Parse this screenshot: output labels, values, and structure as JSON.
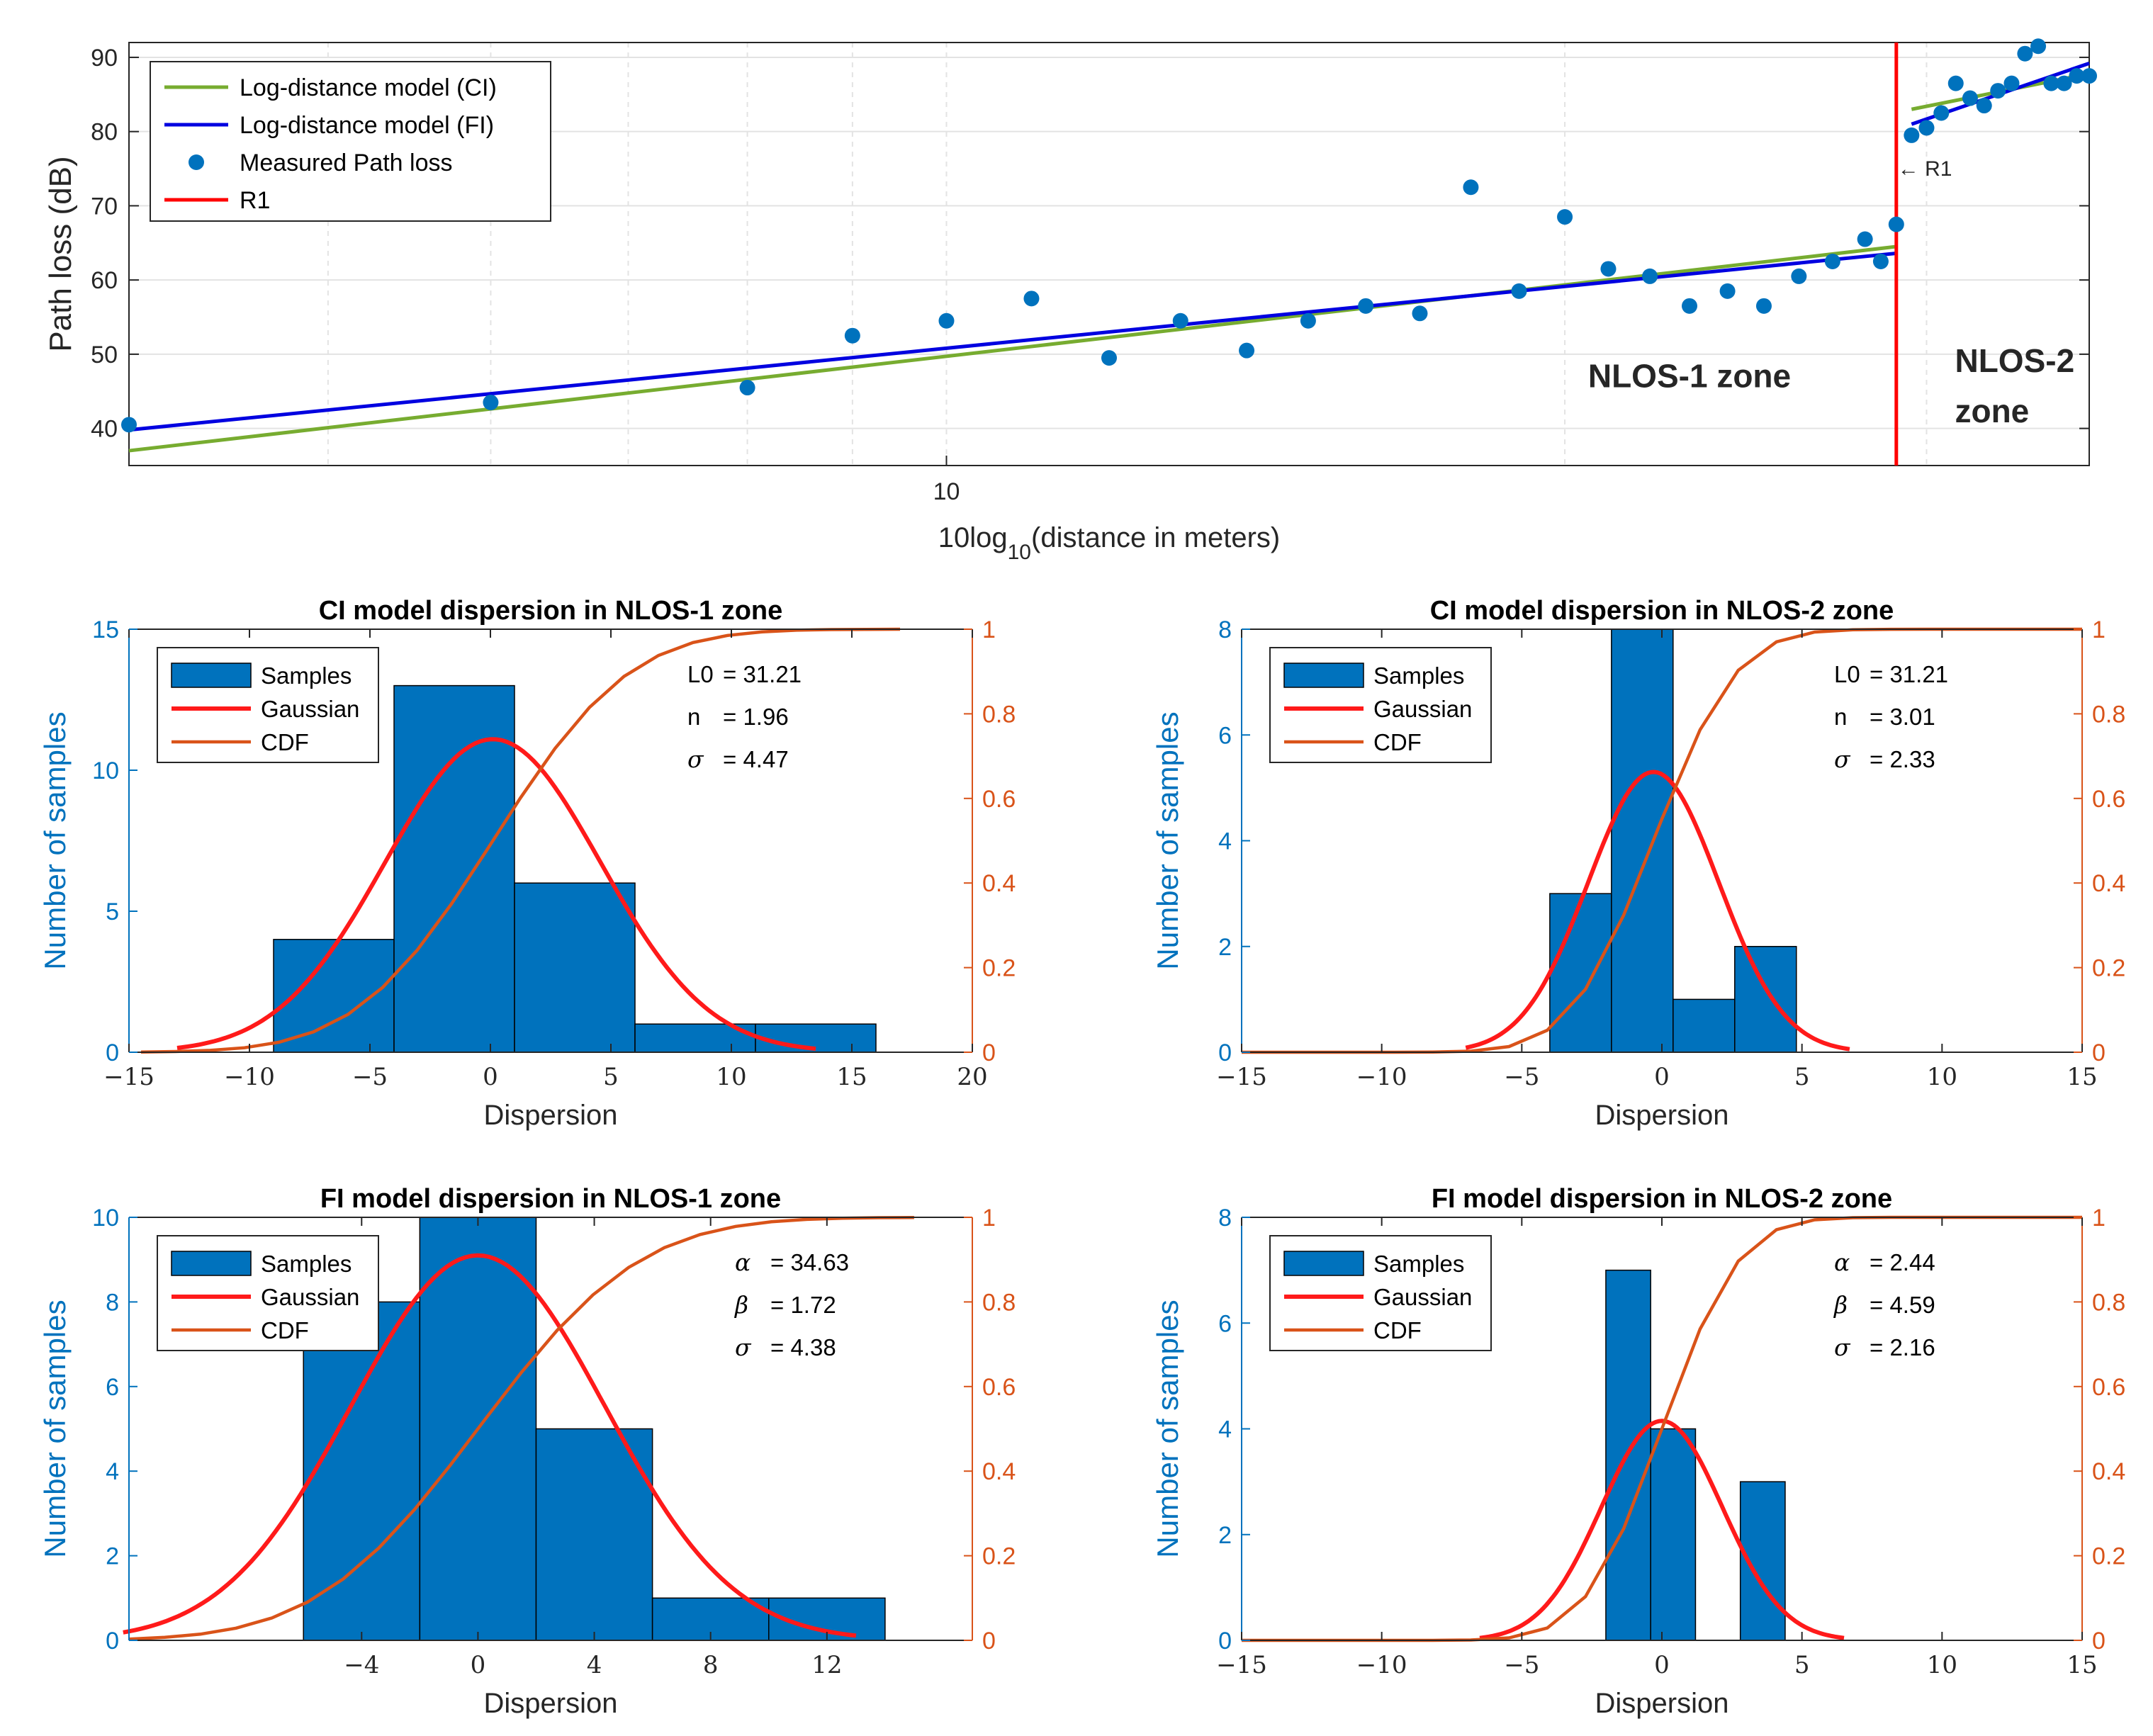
{
  "colors": {
    "axis": "#262626",
    "grid": "#e3e3e3",
    "bar": "#0072bd",
    "measured": "#0072bd",
    "ci_line": "#77ac30",
    "fi_line": "#0000e0",
    "r1_line": "#ff0000",
    "gaussian": "#ff1a1a",
    "cdf": "#d95319",
    "left_axis_label": "#0072bd",
    "right_axis": "#d95319"
  },
  "chart_data": [
    {
      "id": "top",
      "type": "line",
      "title": "",
      "xlabel_prefix": "10log",
      "xlabel_sub": "10",
      "xlabel_suffix": "(distance in meters)",
      "ylabel": "Path loss (dB)",
      "xscale": "log",
      "xlim": [
        4,
        36
      ],
      "ylim": [
        35,
        92
      ],
      "yticks": [
        40,
        50,
        60,
        70,
        80,
        90
      ],
      "xtick_labels": [
        {
          "value": 10,
          "label": "10"
        }
      ],
      "grid": true,
      "legend_position": "top-left",
      "legend": [
        {
          "label": "Log-distance model (CI)",
          "kind": "line",
          "color": "#77ac30"
        },
        {
          "label": "Log-distance model (FI)",
          "kind": "line",
          "color": "#0000e0"
        },
        {
          "label": "Measured Path loss",
          "kind": "marker",
          "color": "#0072bd"
        },
        {
          "label": "R1",
          "kind": "line",
          "color": "#ff0000"
        }
      ],
      "measured": {
        "x": [
          4,
          6,
          8,
          9,
          10,
          11,
          12,
          13,
          14,
          15,
          16,
          17,
          18,
          19,
          20,
          21,
          22,
          23,
          24,
          25,
          26,
          27,
          28,
          28.5,
          29,
          29.5,
          30,
          30.5,
          31,
          31.5,
          32,
          32.5,
          33,
          33.5,
          34,
          34.5,
          35,
          35.5,
          36
        ],
        "y": [
          40.5,
          43.5,
          45.5,
          52.5,
          54.5,
          57.5,
          49.5,
          54.5,
          50.5,
          54.5,
          56.5,
          55.5,
          72.5,
          58.5,
          68.5,
          61.5,
          60.5,
          56.5,
          58.5,
          56.5,
          60.5,
          62.5,
          65.5,
          62.5,
          67.5,
          79.5,
          80.5,
          82.5,
          86.5,
          84.5,
          83.5,
          85.5,
          86.5,
          90.5,
          91.5,
          86.5,
          86.5,
          87.5,
          87.5
        ]
      },
      "ci_nlos1": {
        "x": [
          4,
          29
        ],
        "y": [
          37.0,
          64.5
        ]
      },
      "fi_nlos1": {
        "x": [
          4,
          29
        ],
        "y": [
          39.8,
          63.6
        ]
      },
      "ci_nlos2": {
        "x": [
          29.5,
          36
        ],
        "y": [
          83.0,
          87.8
        ]
      },
      "fi_nlos2": {
        "x": [
          29.5,
          36
        ],
        "y": [
          81.0,
          89.2
        ]
      },
      "r1_x": 29.0,
      "annotations": [
        {
          "text": "← R1",
          "x": 29.0,
          "y": 75
        },
        {
          "text": "NLOS-1 zone",
          "x": 23.0,
          "y": 47
        },
        {
          "text": "NLOS-2 zone",
          "x": 30.0,
          "y": 50
        }
      ]
    },
    {
      "id": "ci1",
      "type": "histogram",
      "title": "CI model dispersion in NLOS-1 zone",
      "xlabel": "Dispersion",
      "ylabel": "Number of samples",
      "xlim": [
        -15,
        20
      ],
      "xticks": [
        -15,
        -10,
        -5,
        0,
        5,
        10,
        15,
        20
      ],
      "ylim": [
        0,
        15
      ],
      "yticks": [
        0,
        5,
        10,
        15
      ],
      "ylim_right": [
        0,
        1
      ],
      "yticks_right": [
        0,
        0.2,
        0.4,
        0.6,
        0.8,
        1
      ],
      "bin_edges": [
        -9,
        -4,
        1,
        6,
        11,
        16
      ],
      "counts": [
        4,
        13,
        6,
        1,
        1
      ],
      "gaussian": {
        "mean": 0.1,
        "sigma": 4.47,
        "amplitude": 11.1,
        "xrange": [
          -13,
          13.5
        ]
      },
      "cdf": {
        "mean": 0.1,
        "sigma": 4.47,
        "xrange": [
          -14.5,
          17
        ]
      },
      "legend": [
        "Samples",
        "Gaussian",
        "CDF"
      ],
      "legend_position": "top-left",
      "params": [
        {
          "symbol": "L0",
          "greek": false,
          "value": "= 31.21"
        },
        {
          "symbol": "n",
          "greek": false,
          "value": "= 1.96"
        },
        {
          "symbol": "σ",
          "greek": true,
          "value": "= 4.47"
        }
      ]
    },
    {
      "id": "ci2",
      "type": "histogram",
      "title": "CI model dispersion in NLOS-2 zone",
      "xlabel": "Dispersion",
      "ylabel": "Number of samples",
      "xlim": [
        -15,
        15
      ],
      "xticks": [
        -15,
        -10,
        -5,
        0,
        5,
        10,
        15
      ],
      "ylim": [
        0,
        8
      ],
      "yticks": [
        0,
        2,
        4,
        6,
        8
      ],
      "ylim_right": [
        0,
        1
      ],
      "yticks_right": [
        0,
        0.2,
        0.4,
        0.6,
        0.8,
        1
      ],
      "bin_edges": [
        -4,
        -1.8,
        0.4,
        2.6,
        4.8
      ],
      "counts": [
        3,
        8,
        1,
        2
      ],
      "gaussian": {
        "mean": -0.3,
        "sigma": 2.33,
        "amplitude": 5.3,
        "xrange": [
          -7,
          6.7
        ]
      },
      "cdf": {
        "mean": -0.3,
        "sigma": 2.33,
        "xrange": [
          -15,
          15
        ]
      },
      "legend": [
        "Samples",
        "Gaussian",
        "CDF"
      ],
      "legend_position": "top-left",
      "params": [
        {
          "symbol": "L0",
          "greek": false,
          "value": "= 31.21"
        },
        {
          "symbol": "n",
          "greek": false,
          "value": "= 3.01"
        },
        {
          "symbol": "σ",
          "greek": true,
          "value": "= 2.33"
        }
      ]
    },
    {
      "id": "fi1",
      "type": "histogram",
      "title": "FI model dispersion in NLOS-1 zone",
      "xlabel": "Dispersion",
      "ylabel": "Number of samples",
      "xlim": [
        -12,
        17
      ],
      "xticks": [
        -4,
        0,
        4,
        8,
        12
      ],
      "ylim": [
        0,
        10
      ],
      "yticks": [
        0,
        2,
        4,
        6,
        8,
        10
      ],
      "ylim_right": [
        0,
        1
      ],
      "yticks_right": [
        0,
        0.2,
        0.4,
        0.6,
        0.8,
        1
      ],
      "bin_edges": [
        -6,
        -2,
        2,
        6,
        10,
        14
      ],
      "counts": [
        8,
        10,
        5,
        1,
        1
      ],
      "gaussian": {
        "mean": 0,
        "sigma": 4.38,
        "amplitude": 9.1,
        "xrange": [
          -12.2,
          13
        ]
      },
      "cdf": {
        "mean": 0,
        "sigma": 4.38,
        "xrange": [
          -12,
          15
        ]
      },
      "legend": [
        "Samples",
        "Gaussian",
        "CDF"
      ],
      "legend_position": "top-left",
      "params": [
        {
          "symbol": "α",
          "greek": true,
          "value": "= 34.63"
        },
        {
          "symbol": "β",
          "greek": true,
          "value": "= 1.72"
        },
        {
          "symbol": "σ",
          "greek": true,
          "value": "= 4.38"
        }
      ]
    },
    {
      "id": "fi2",
      "type": "histogram",
      "title": "FI model dispersion in NLOS-2 zone",
      "xlabel": "Dispersion",
      "ylabel": "Number of samples",
      "xlim": [
        -15,
        15
      ],
      "xticks": [
        -15,
        -10,
        -5,
        0,
        5,
        10,
        15
      ],
      "ylim": [
        0,
        8
      ],
      "yticks": [
        0,
        2,
        4,
        6,
        8
      ],
      "ylim_right": [
        0,
        1
      ],
      "yticks_right": [
        0,
        0.2,
        0.4,
        0.6,
        0.8,
        1
      ],
      "bin_edges": [
        -2,
        -0.4,
        1.2,
        2.8,
        4.4
      ],
      "counts": [
        7,
        4,
        0,
        3
      ],
      "gaussian": {
        "mean": 0,
        "sigma": 2.16,
        "amplitude": 4.15,
        "xrange": [
          -6.5,
          6.5
        ]
      },
      "cdf": {
        "mean": 0,
        "sigma": 2.16,
        "xrange": [
          -15,
          15
        ]
      },
      "legend": [
        "Samples",
        "Gaussian",
        "CDF"
      ],
      "legend_position": "top-left",
      "params": [
        {
          "symbol": "α",
          "greek": true,
          "value": "= 2.44"
        },
        {
          "symbol": "β",
          "greek": true,
          "value": "= 4.59"
        },
        {
          "symbol": "σ",
          "greek": true,
          "value": "= 2.16"
        }
      ]
    }
  ]
}
